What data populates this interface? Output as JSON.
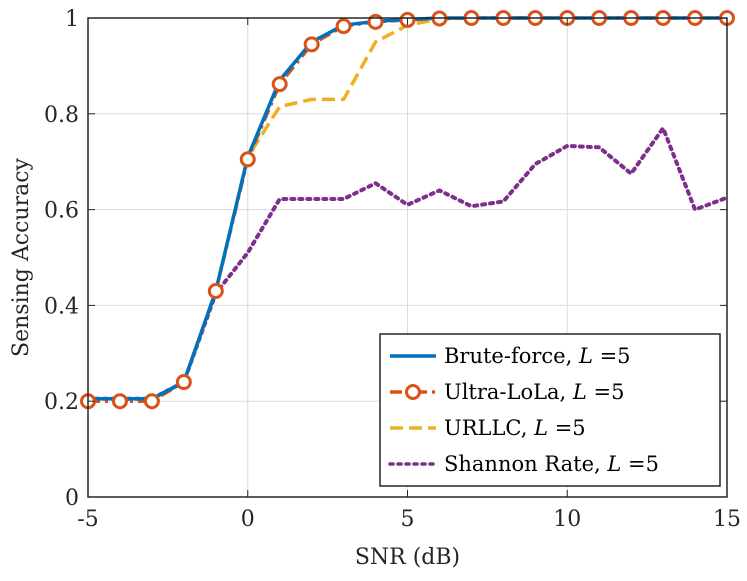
{
  "chart_data": {
    "type": "line",
    "title": "",
    "xlabel": "SNR (dB)",
    "ylabel": "Sensing Accuracy",
    "xlim": [
      -5,
      15
    ],
    "ylim": [
      0,
      1
    ],
    "xticks": [
      -5,
      0,
      5,
      10,
      15
    ],
    "yticks": [
      0,
      0.2,
      0.4,
      0.6,
      0.8,
      1
    ],
    "xtick_labels": [
      "-5",
      "0",
      "5",
      "10",
      "15"
    ],
    "ytick_labels": [
      "0",
      "0.2",
      "0.4",
      "0.6",
      "0.8",
      "1"
    ],
    "grid": true,
    "legend_position": "bottom-right",
    "x": [
      -5,
      -4,
      -3,
      -2,
      -1,
      0,
      1,
      2,
      3,
      4,
      5,
      6,
      7,
      8,
      9,
      10,
      11,
      12,
      13,
      14,
      15
    ],
    "series": [
      {
        "name": "Brute-force",
        "legend_label": "Brute-force, ",
        "legend_math": "L",
        "legend_suffix": " =5",
        "color": "#0072BD",
        "style": "solid",
        "marker": "none",
        "values": [
          0.205,
          0.205,
          0.205,
          0.24,
          0.43,
          0.71,
          0.87,
          0.95,
          0.985,
          0.993,
          0.997,
          1,
          1,
          1,
          1,
          1,
          1,
          1,
          1,
          1,
          1
        ]
      },
      {
        "name": "Ultra-LoLa",
        "legend_label": "Ultra-LoLa, ",
        "legend_math": "L",
        "legend_suffix": " =5",
        "color": "#D95319",
        "style": "dashdot",
        "marker": "circle",
        "values": [
          0.2,
          0.2,
          0.2,
          0.24,
          0.43,
          0.705,
          0.862,
          0.945,
          0.983,
          0.992,
          0.996,
          0.999,
          1,
          1,
          1,
          1,
          1,
          1,
          1,
          1,
          1
        ]
      },
      {
        "name": "URLLC",
        "legend_label": "URLLC, ",
        "legend_math": "L",
        "legend_suffix": " =5",
        "color": "#EDB120",
        "style": "dashed",
        "marker": "none",
        "values": [
          0.205,
          0.205,
          0.205,
          0.24,
          0.43,
          0.71,
          0.815,
          0.83,
          0.83,
          0.95,
          0.985,
          0.998,
          1,
          1,
          1,
          1,
          1,
          1,
          1,
          1,
          1
        ]
      },
      {
        "name": "Shannon Rate",
        "legend_label": "Shannon Rate, ",
        "legend_math": "L",
        "legend_suffix": " =5",
        "color": "#7E2F8E",
        "style": "dotted",
        "marker": "none",
        "values": [
          0.205,
          0.205,
          0.205,
          0.24,
          0.425,
          0.51,
          0.622,
          0.622,
          0.622,
          0.655,
          0.61,
          0.64,
          0.607,
          0.617,
          0.695,
          0.733,
          0.73,
          0.675,
          0.77,
          0.6,
          0.625
        ]
      }
    ]
  },
  "colors": {
    "axis": "#262626",
    "grid": "#dcdcdc",
    "background": "#ffffff"
  }
}
